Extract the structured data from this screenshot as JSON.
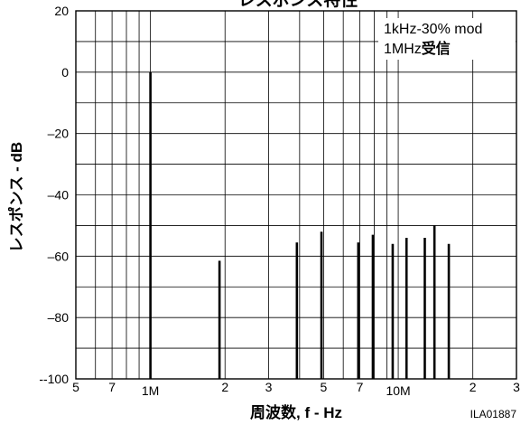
{
  "chart_data": {
    "type": "bar",
    "title": "レスポンス特性",
    "xlabel": "周波数, f - Hz",
    "ylabel": "レスポンス - dB",
    "x_scale": "log",
    "xlim": [
      500000,
      30000000
    ],
    "ylim": [
      -100,
      20
    ],
    "yticks": [
      20,
      0,
      -20,
      -40,
      -60,
      -80,
      -100
    ],
    "ytick_labels": [
      "20",
      "0",
      "–20",
      "–40",
      "–60",
      "–80",
      "--100"
    ],
    "xticks": [
      {
        "value": 500000,
        "label": "5"
      },
      {
        "value": 700000,
        "label": "7"
      },
      {
        "value": 1000000,
        "label": "1M"
      },
      {
        "value": 2000000,
        "label": "2"
      },
      {
        "value": 3000000,
        "label": "3"
      },
      {
        "value": 5000000,
        "label": "5"
      },
      {
        "value": 7000000,
        "label": "7"
      },
      {
        "value": 10000000,
        "label": "10M"
      },
      {
        "value": 20000000,
        "label": "2"
      },
      {
        "value": 30000000,
        "label": "3"
      }
    ],
    "grid": true,
    "annotation": {
      "line1": "1kHz-30% mod",
      "line2_a": "1MHz",
      "line2_b": "受信"
    },
    "figure_id": "ILA01887",
    "bars": [
      {
        "x": 1000000,
        "y": 0
      },
      {
        "x": 1900000,
        "y": -61.5
      },
      {
        "x": 3900000,
        "y": -55.5
      },
      {
        "x": 4900000,
        "y": -52
      },
      {
        "x": 6900000,
        "y": -55.5
      },
      {
        "x": 7900000,
        "y": -53
      },
      {
        "x": 9500000,
        "y": -56
      },
      {
        "x": 10800000,
        "y": -54
      },
      {
        "x": 12800000,
        "y": -54
      },
      {
        "x": 14000000,
        "y": -50
      },
      {
        "x": 16000000,
        "y": -56
      }
    ]
  }
}
